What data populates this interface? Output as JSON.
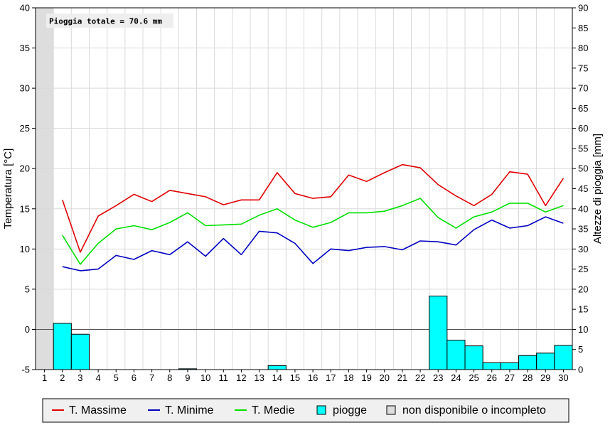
{
  "chart_data": {
    "type": "line",
    "annotation": "Pioggia totale = 70.6 mm",
    "xlabel": "",
    "ylabel": "Temperatura [°C]",
    "y2label": "Altezze di pioggia [mm]",
    "ylim": [
      -5,
      40
    ],
    "y2lim": [
      0,
      90
    ],
    "y_ticks": [
      -5,
      0,
      5,
      10,
      15,
      20,
      25,
      30,
      35,
      40
    ],
    "y2_ticks": [
      0,
      5,
      10,
      15,
      20,
      25,
      30,
      35,
      40,
      45,
      50,
      55,
      60,
      65,
      70,
      75,
      80,
      85,
      90
    ],
    "x": [
      1,
      2,
      3,
      4,
      5,
      6,
      7,
      8,
      9,
      10,
      11,
      12,
      13,
      14,
      15,
      16,
      17,
      18,
      19,
      20,
      21,
      22,
      23,
      24,
      25,
      26,
      27,
      28,
      29,
      30
    ],
    "grid": true,
    "legend_position": "bottom",
    "unavailable_days": [
      1
    ],
    "series": [
      {
        "name": "T. Massime",
        "color": "#e00000",
        "values": [
          null,
          16.1,
          9.6,
          14.1,
          15.4,
          16.8,
          15.9,
          17.3,
          16.9,
          16.5,
          15.5,
          16.1,
          16.1,
          19.5,
          16.9,
          16.3,
          16.5,
          19.2,
          18.4,
          19.5,
          20.5,
          20.1,
          18.0,
          16.6,
          15.4,
          16.8,
          19.6,
          19.3,
          15.4,
          18.8
        ]
      },
      {
        "name": "T. Minime",
        "color": "#0000c0",
        "values": [
          null,
          7.8,
          7.3,
          7.5,
          9.2,
          8.7,
          9.8,
          9.3,
          10.9,
          9.1,
          11.3,
          9.3,
          12.2,
          12.0,
          10.7,
          8.2,
          10.0,
          9.8,
          10.2,
          10.3,
          9.9,
          11.0,
          10.9,
          10.5,
          12.4,
          13.6,
          12.6,
          12.9,
          14.0,
          13.2
        ]
      },
      {
        "name": "T. Medie",
        "color": "#00e000",
        "values": [
          null,
          11.7,
          8.1,
          10.7,
          12.5,
          12.9,
          12.4,
          13.3,
          14.5,
          12.9,
          13.0,
          13.1,
          14.2,
          15.0,
          13.6,
          12.7,
          13.3,
          14.5,
          14.5,
          14.7,
          15.4,
          16.3,
          13.9,
          12.6,
          14.0,
          14.6,
          15.7,
          15.7,
          14.6,
          15.4
        ]
      },
      {
        "name": "piogge",
        "color": "#00ffff",
        "type": "bar",
        "axis": "y2",
        "values": [
          0,
          11.5,
          8.8,
          0,
          0,
          0,
          0,
          0,
          0.2,
          0,
          0,
          0,
          0,
          1.0,
          0,
          0,
          0,
          0,
          0,
          0,
          0,
          0,
          18.3,
          7.3,
          5.9,
          1.7,
          1.7,
          3.5,
          4.1,
          6.0
        ]
      }
    ],
    "legend": [
      {
        "label": "T. Massime",
        "kind": "line",
        "color": "#e00000"
      },
      {
        "label": "T. Minime",
        "kind": "line",
        "color": "#0000c0"
      },
      {
        "label": "T. Medie",
        "kind": "line",
        "color": "#00e000"
      },
      {
        "label": "piogge",
        "kind": "box",
        "color": "#00ffff"
      },
      {
        "label": "non disponibile o incompleto",
        "kind": "box",
        "color": "#dddddd"
      }
    ]
  }
}
